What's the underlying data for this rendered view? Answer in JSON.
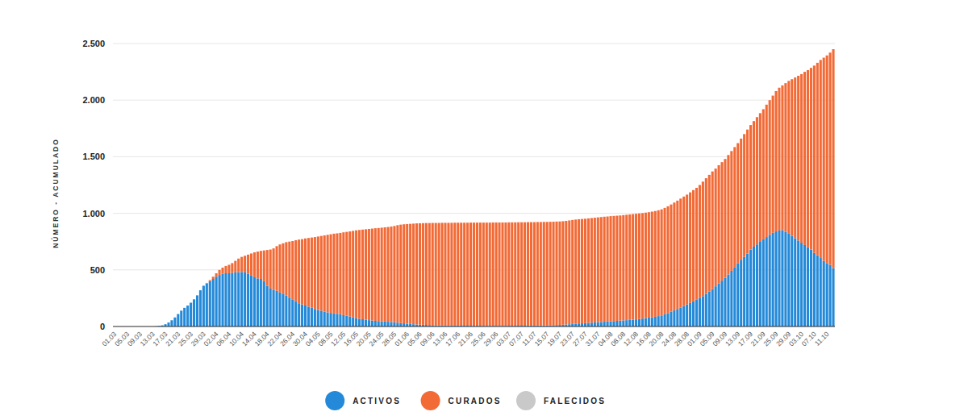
{
  "chart_data": {
    "type": "bar",
    "stacked": true,
    "grid": true,
    "legend": "bottom",
    "y_label": "NÚMERO - ACUMULADO",
    "ylim": [
      0,
      2500
    ],
    "yticks": [
      0,
      {
        "value": 500,
        "label": "500"
      },
      {
        "value": 1000,
        "label": "1.000"
      },
      {
        "value": 1500,
        "label": "1.500"
      },
      {
        "value": 2000,
        "label": "2.000"
      },
      {
        "value": 2500,
        "label": "2.500"
      }
    ],
    "categories": [
      "01.03",
      null,
      null,
      null,
      "05.03",
      null,
      null,
      null,
      "09.03",
      null,
      null,
      null,
      "13.03",
      null,
      null,
      null,
      "17.03",
      null,
      null,
      null,
      "21.03",
      null,
      null,
      null,
      "25.03",
      null,
      null,
      null,
      "29.03",
      null,
      null,
      null,
      "02.04",
      null,
      null,
      null,
      "06.04",
      null,
      null,
      null,
      "10.04",
      null,
      null,
      null,
      "14.04",
      null,
      null,
      null,
      "18.04",
      null,
      null,
      null,
      "22.04",
      null,
      null,
      null,
      "26.04",
      null,
      null,
      null,
      "30.04",
      null,
      null,
      null,
      "04.05",
      null,
      null,
      null,
      "08.05",
      null,
      null,
      null,
      "12.05",
      null,
      null,
      null,
      "16.05",
      null,
      null,
      null,
      "20.05",
      null,
      null,
      null,
      "24.05",
      null,
      null,
      null,
      "28.05",
      null,
      null,
      null,
      "01.06",
      null,
      null,
      null,
      "05.06",
      null,
      null,
      null,
      "09.06",
      null,
      null,
      null,
      "13.06",
      null,
      null,
      null,
      "17.06",
      null,
      null,
      null,
      "21.06",
      null,
      null,
      null,
      "25.06",
      null,
      null,
      null,
      "29.06",
      null,
      null,
      null,
      "03.07",
      null,
      null,
      null,
      "07.07",
      null,
      null,
      null,
      "11.07",
      null,
      null,
      null,
      "15.07",
      null,
      null,
      null,
      "19.07",
      null,
      null,
      null,
      "23.07",
      null,
      null,
      null,
      "27.07",
      null,
      null,
      null,
      "31.07",
      null,
      null,
      null,
      "04.08",
      null,
      null,
      null,
      "08.08",
      null,
      null,
      null,
      "12.08",
      null,
      null,
      null,
      "16.08",
      null,
      null,
      null,
      "20.08",
      null,
      null,
      null,
      "24.08",
      null,
      null,
      null,
      "28.08",
      null,
      null,
      null,
      "01.09",
      null,
      null,
      null,
      "05.09",
      null,
      null,
      null,
      "09.09",
      null,
      null,
      null,
      "13.09",
      null,
      null,
      null,
      "17.09",
      null,
      null,
      null,
      "21.09",
      null,
      null,
      null,
      "25.09",
      null,
      null,
      null,
      "29.09",
      null,
      null,
      null,
      "03.10",
      null,
      null,
      null,
      "07.10",
      null,
      null,
      null,
      "11.10",
      null,
      null
    ],
    "series": [
      {
        "name": "ACTIVOS",
        "color": "#2389d8",
        "values": [
          0,
          0,
          0,
          0,
          0,
          0,
          0,
          0,
          0,
          0,
          0,
          0,
          0,
          2,
          5,
          10,
          20,
          35,
          55,
          80,
          110,
          140,
          165,
          185,
          210,
          240,
          275,
          320,
          360,
          380,
          400,
          420,
          440,
          455,
          465,
          470,
          470,
          475,
          478,
          480,
          482,
          478,
          465,
          450,
          435,
          425,
          420,
          400,
          360,
          335,
          325,
          315,
          300,
          290,
          275,
          255,
          240,
          225,
          205,
          195,
          185,
          175,
          165,
          155,
          145,
          140,
          130,
          125,
          120,
          115,
          112,
          108,
          100,
          95,
          88,
          80,
          72,
          68,
          64,
          60,
          56,
          53,
          50,
          48,
          46,
          44,
          42,
          40,
          37,
          34,
          31,
          28,
          25,
          22,
          20,
          18,
          16,
          15,
          14,
          13,
          12,
          11,
          10,
          10,
          9,
          9,
          8,
          8,
          8,
          7,
          7,
          7,
          6,
          6,
          6,
          6,
          5,
          5,
          5,
          5,
          5,
          5,
          5,
          5,
          6,
          6,
          6,
          7,
          7,
          7,
          8,
          8,
          8,
          9,
          9,
          10,
          10,
          11,
          12,
          13,
          14,
          16,
          18,
          20,
          22,
          25,
          27,
          28,
          30,
          32,
          34,
          36,
          38,
          40,
          42,
          44,
          46,
          48,
          50,
          52,
          54,
          56,
          58,
          60,
          63,
          66,
          70,
          74,
          78,
          82,
          86,
          92,
          98,
          108,
          118,
          130,
          142,
          155,
          168,
          180,
          195,
          208,
          222,
          236,
          250,
          268,
          288,
          308,
          330,
          355,
          380,
          405,
          430,
          460,
          492,
          525,
          560,
          590,
          615,
          645,
          680,
          705,
          725,
          748,
          770,
          790,
          810,
          828,
          840,
          848,
          852,
          835,
          820,
          800,
          780,
          760,
          740,
          720,
          700,
          680,
          650,
          630,
          605,
          580,
          560,
          545,
          515
        ]
      },
      {
        "name": "CURADOS",
        "color": "#f26a36",
        "values": [
          0,
          0,
          0,
          0,
          0,
          0,
          0,
          0,
          0,
          0,
          0,
          0,
          0,
          0,
          0,
          0,
          0,
          0,
          0,
          0,
          0,
          0,
          0,
          0,
          0,
          0,
          0,
          0,
          0,
          5,
          10,
          20,
          30,
          45,
          55,
          65,
          75,
          85,
          102,
          120,
          133,
          147,
          170,
          195,
          220,
          237,
          248,
          272,
          316,
          345,
          365,
          395,
          425,
          445,
          470,
          495,
          515,
          537,
          563,
          577,
          593,
          607,
          621,
          635,
          650,
          660,
          675,
          685,
          695,
          705,
          711,
          719,
          732,
          741,
          752,
          765,
          778,
          785,
          792,
          799,
          806,
          812,
          818,
          822,
          827,
          832,
          837,
          843,
          851,
          861,
          869,
          875,
          880,
          885,
          889,
          893,
          896,
          898,
          900,
          901,
          903,
          904,
          905,
          906,
          907,
          907,
          908,
          909,
          909,
          910,
          910,
          910,
          912,
          912,
          912,
          912,
          913,
          913,
          913,
          914,
          914,
          914,
          914,
          914,
          914,
          914,
          914,
          914,
          914,
          914,
          914,
          914,
          914,
          914,
          914,
          914,
          914,
          914,
          914,
          914,
          914,
          914,
          915,
          917,
          919,
          920,
          921,
          922,
          922,
          923,
          924,
          925,
          926,
          927,
          928,
          928,
          929,
          929,
          929,
          929,
          930,
          931,
          932,
          933,
          933,
          933,
          932,
          932,
          932,
          933,
          934,
          935,
          937,
          940,
          944,
          948,
          953,
          957,
          962,
          968,
          970,
          977,
          983,
          989,
          1000,
          1012,
          1022,
          1032,
          1040,
          1040,
          1045,
          1047,
          1050,
          1055,
          1058,
          1060,
          1060,
          1070,
          1085,
          1095,
          1100,
          1110,
          1125,
          1137,
          1150,
          1170,
          1190,
          1212,
          1240,
          1262,
          1278,
          1315,
          1350,
          1385,
          1420,
          1455,
          1490,
          1530,
          1565,
          1605,
          1655,
          1700,
          1750,
          1795,
          1835,
          1875,
          1935
        ]
      },
      {
        "name": "FALECIDOS",
        "color": "#c9c9c9",
        "values": [
          0,
          0,
          0,
          0,
          0,
          0,
          0,
          0,
          0,
          0,
          0,
          0,
          0,
          0,
          0,
          0,
          0,
          0,
          0,
          0,
          0,
          0,
          0,
          0,
          0,
          0,
          0,
          0,
          0,
          0,
          0,
          0,
          0,
          0,
          0,
          0,
          0,
          0,
          0,
          0,
          0,
          0,
          0,
          0,
          0,
          0,
          0,
          0,
          0,
          0,
          0,
          0,
          0,
          0,
          0,
          0,
          0,
          0,
          0,
          0,
          0,
          0,
          0,
          0,
          0,
          0,
          0,
          0,
          0,
          0,
          0,
          0,
          0,
          0,
          0,
          0,
          0,
          0,
          0,
          0,
          0,
          0,
          0,
          0,
          0,
          0,
          0,
          0,
          0,
          0,
          0,
          0,
          0,
          0,
          0,
          0,
          0,
          0,
          0,
          0,
          0,
          0,
          0,
          0,
          0,
          0,
          0,
          0,
          0,
          0,
          0,
          0,
          0,
          0,
          0,
          0,
          0,
          0,
          0,
          0,
          0,
          0,
          0,
          0,
          0,
          0,
          0,
          0,
          0,
          0,
          0,
          0,
          0,
          0,
          0,
          0,
          0,
          0,
          0,
          0,
          0,
          0,
          0,
          0,
          0,
          0,
          0,
          0,
          0,
          0,
          0,
          0,
          0,
          0,
          0,
          0,
          0,
          0,
          0,
          0,
          0,
          0,
          0,
          0,
          0,
          0,
          0,
          0,
          0,
          0,
          0,
          0,
          0,
          0,
          0,
          0,
          0,
          0,
          0,
          0,
          0,
          0,
          0,
          0,
          0,
          0,
          0,
          0,
          0,
          0,
          0,
          0,
          0,
          0,
          0,
          0,
          0,
          0,
          0,
          0,
          0,
          0,
          0,
          0,
          0,
          0,
          0,
          0,
          0,
          0,
          0,
          0,
          0,
          0,
          0,
          0,
          0,
          0,
          0,
          0,
          0,
          0,
          0,
          0,
          0,
          0,
          0
        ]
      }
    ]
  }
}
